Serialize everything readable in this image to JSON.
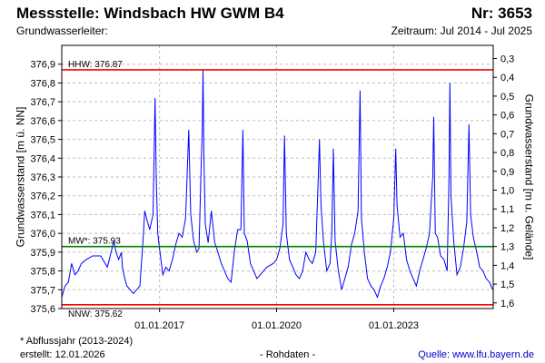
{
  "header": {
    "station_title": "Messstelle: Windsbach HW GWM B4",
    "station_number": "Nr: 3653",
    "aquifer_label": "Grundwasserleiter:",
    "period_label": "Zeitraum: Jul 2014 - Jul 2025"
  },
  "footer": {
    "note": "* Abflussjahr (2013-2024)",
    "created": "erstellt:  12.01.2026",
    "raw": "- Rohdaten -",
    "source": "Quelle: www.lfu.bayern.de"
  },
  "colors": {
    "series": "#0000ff",
    "hhw_nnw": "#ff0000",
    "mw": "#008000",
    "grid": "#bdbdbd",
    "frame": "#000000"
  },
  "chart_data": {
    "type": "line",
    "title": "",
    "ylabel": "Grundwasserstand [m ü. NN]",
    "ylabel_right": "Grundwasserstand [m u. Gelände]",
    "ylim": [
      375.6,
      377.0
    ],
    "ylim_right_depth": [
      1.63,
      0.23
    ],
    "y_ticks": [
      "375,6",
      "375,7",
      "375,8",
      "375,9",
      "376,0",
      "376,1",
      "376,2",
      "376,3",
      "376,4",
      "376,5",
      "376,6",
      "376,7",
      "376,8",
      "376,9"
    ],
    "y_ticks_right": [
      "1,6",
      "1,5",
      "1,4",
      "1,3",
      "1,2",
      "1,1",
      "1,0",
      "0,9",
      "0,8",
      "0,7",
      "0,6",
      "0,5",
      "0,4",
      "0,3"
    ],
    "xlim": [
      "2014-07-01",
      "2025-07-20"
    ],
    "x_ticks": [
      {
        "date": "2017-01-01",
        "label": "01.01.2017"
      },
      {
        "date": "2020-01-01",
        "label": "01.01.2020"
      },
      {
        "date": "2023-01-01",
        "label": "01.01.2023"
      }
    ],
    "grid": true,
    "reference_lines": [
      {
        "name": "HHW",
        "label": "HHW: 376.87",
        "value": 376.87
      },
      {
        "name": "MW",
        "label": "MW*: 375.93",
        "value": 375.93
      },
      {
        "name": "NNW",
        "label": "NNW: 375.62",
        "value": 375.62
      }
    ],
    "series": [
      {
        "points": [
          [
            "2014-07-01",
            375.66
          ],
          [
            "2014-08-01",
            375.72
          ],
          [
            "2014-09-01",
            375.74
          ],
          [
            "2014-10-01",
            375.84
          ],
          [
            "2014-11-01",
            375.78
          ],
          [
            "2014-12-01",
            375.8
          ],
          [
            "2015-01-01",
            375.84
          ],
          [
            "2015-02-15",
            375.86
          ],
          [
            "2015-04-15",
            375.88
          ],
          [
            "2015-07-01",
            375.88
          ],
          [
            "2015-09-01",
            375.82
          ],
          [
            "2015-11-01",
            375.96
          ],
          [
            "2015-11-20",
            375.9
          ],
          [
            "2015-12-15",
            375.86
          ],
          [
            "2016-01-10",
            375.9
          ],
          [
            "2016-01-20",
            375.82
          ],
          [
            "2016-02-10",
            375.76
          ],
          [
            "2016-03-01",
            375.72
          ],
          [
            "2016-04-01",
            375.7
          ],
          [
            "2016-05-01",
            375.68
          ],
          [
            "2016-06-01",
            375.7
          ],
          [
            "2016-07-01",
            375.72
          ],
          [
            "2016-08-01",
            375.98
          ],
          [
            "2016-08-15",
            376.12
          ],
          [
            "2016-09-01",
            376.08
          ],
          [
            "2016-10-01",
            376.02
          ],
          [
            "2016-11-01",
            376.1
          ],
          [
            "2016-11-20",
            376.72
          ],
          [
            "2016-12-01",
            376.3
          ],
          [
            "2016-12-15",
            376.0
          ],
          [
            "2017-01-05",
            375.9
          ],
          [
            "2017-02-01",
            375.78
          ],
          [
            "2017-03-01",
            375.82
          ],
          [
            "2017-04-01",
            375.8
          ],
          [
            "2017-05-01",
            375.86
          ],
          [
            "2017-06-01",
            375.94
          ],
          [
            "2017-07-01",
            376.0
          ],
          [
            "2017-08-01",
            375.98
          ],
          [
            "2017-09-01",
            376.08
          ],
          [
            "2017-10-01",
            376.55
          ],
          [
            "2017-10-20",
            376.1
          ],
          [
            "2017-11-15",
            375.96
          ],
          [
            "2017-12-15",
            375.9
          ],
          [
            "2018-01-05",
            375.92
          ],
          [
            "2018-01-25",
            376.35
          ],
          [
            "2018-02-05",
            376.55
          ],
          [
            "2018-02-12",
            376.87
          ],
          [
            "2018-02-20",
            376.4
          ],
          [
            "2018-03-05",
            376.05
          ],
          [
            "2018-04-01",
            375.95
          ],
          [
            "2018-05-01",
            376.12
          ],
          [
            "2018-06-01",
            375.95
          ],
          [
            "2018-07-01",
            375.9
          ],
          [
            "2018-08-01",
            375.84
          ],
          [
            "2018-09-01",
            375.8
          ],
          [
            "2018-10-01",
            375.76
          ],
          [
            "2018-11-01",
            375.74
          ],
          [
            "2018-12-01",
            375.9
          ],
          [
            "2019-01-01",
            376.02
          ],
          [
            "2019-02-01",
            376.02
          ],
          [
            "2019-02-20",
            376.55
          ],
          [
            "2019-03-05",
            376.0
          ],
          [
            "2019-04-01",
            375.96
          ],
          [
            "2019-05-01",
            375.84
          ],
          [
            "2019-07-01",
            375.76
          ],
          [
            "2019-10-01",
            375.82
          ],
          [
            "2019-12-01",
            375.84
          ],
          [
            "2020-01-01",
            375.86
          ],
          [
            "2020-02-01",
            375.92
          ],
          [
            "2020-03-01",
            376.05
          ],
          [
            "2020-03-15",
            376.52
          ],
          [
            "2020-04-01",
            376.0
          ],
          [
            "2020-05-01",
            375.86
          ],
          [
            "2020-06-01",
            375.82
          ],
          [
            "2020-07-01",
            375.78
          ],
          [
            "2020-08-01",
            375.76
          ],
          [
            "2020-09-01",
            375.8
          ],
          [
            "2020-10-01",
            375.9
          ],
          [
            "2020-11-01",
            375.86
          ],
          [
            "2020-12-01",
            375.84
          ],
          [
            "2021-01-01",
            375.9
          ],
          [
            "2021-01-25",
            376.3
          ],
          [
            "2021-02-05",
            376.5
          ],
          [
            "2021-02-20",
            376.15
          ],
          [
            "2021-03-15",
            375.95
          ],
          [
            "2021-04-15",
            375.8
          ],
          [
            "2021-05-15",
            375.84
          ],
          [
            "2021-06-01",
            376.0
          ],
          [
            "2021-06-15",
            376.45
          ],
          [
            "2021-07-01",
            375.96
          ],
          [
            "2021-08-01",
            375.8
          ],
          [
            "2021-09-01",
            375.7
          ],
          [
            "2021-10-01",
            375.76
          ],
          [
            "2021-11-01",
            375.82
          ],
          [
            "2021-12-01",
            375.94
          ],
          [
            "2022-01-01",
            376.0
          ],
          [
            "2022-02-01",
            376.12
          ],
          [
            "2022-02-20",
            376.76
          ],
          [
            "2022-03-05",
            376.08
          ],
          [
            "2022-04-01",
            375.9
          ],
          [
            "2022-05-01",
            375.76
          ],
          [
            "2022-06-01",
            375.72
          ],
          [
            "2022-07-01",
            375.7
          ],
          [
            "2022-08-01",
            375.66
          ],
          [
            "2022-09-01",
            375.72
          ],
          [
            "2022-10-01",
            375.76
          ],
          [
            "2022-11-01",
            375.82
          ],
          [
            "2022-12-01",
            375.9
          ],
          [
            "2023-01-01",
            376.08
          ],
          [
            "2023-01-20",
            376.45
          ],
          [
            "2023-02-01",
            376.15
          ],
          [
            "2023-03-01",
            375.98
          ],
          [
            "2023-04-01",
            376.0
          ],
          [
            "2023-05-01",
            375.86
          ],
          [
            "2023-06-01",
            375.8
          ],
          [
            "2023-07-01",
            375.76
          ],
          [
            "2023-08-01",
            375.72
          ],
          [
            "2023-09-01",
            375.8
          ],
          [
            "2023-10-01",
            375.86
          ],
          [
            "2023-11-01",
            375.92
          ],
          [
            "2023-12-01",
            376.0
          ],
          [
            "2024-01-01",
            376.3
          ],
          [
            "2024-01-10",
            376.62
          ],
          [
            "2024-01-25",
            376.0
          ],
          [
            "2024-02-15",
            375.98
          ],
          [
            "2024-03-15",
            375.88
          ],
          [
            "2024-04-15",
            375.86
          ],
          [
            "2024-05-15",
            375.8
          ],
          [
            "2024-06-01",
            376.3
          ],
          [
            "2024-06-10",
            376.8
          ],
          [
            "2024-06-20",
            376.2
          ],
          [
            "2024-07-15",
            375.96
          ],
          [
            "2024-08-15",
            375.78
          ],
          [
            "2024-09-15",
            375.82
          ],
          [
            "2024-10-15",
            375.92
          ],
          [
            "2024-11-15",
            376.06
          ],
          [
            "2024-12-05",
            376.58
          ],
          [
            "2024-12-20",
            376.1
          ],
          [
            "2025-01-15",
            375.98
          ],
          [
            "2025-02-15",
            375.9
          ],
          [
            "2025-03-15",
            375.82
          ],
          [
            "2025-04-15",
            375.8
          ],
          [
            "2025-05-15",
            375.76
          ],
          [
            "2025-06-15",
            375.74
          ],
          [
            "2025-07-15",
            375.7
          ]
        ]
      }
    ]
  }
}
